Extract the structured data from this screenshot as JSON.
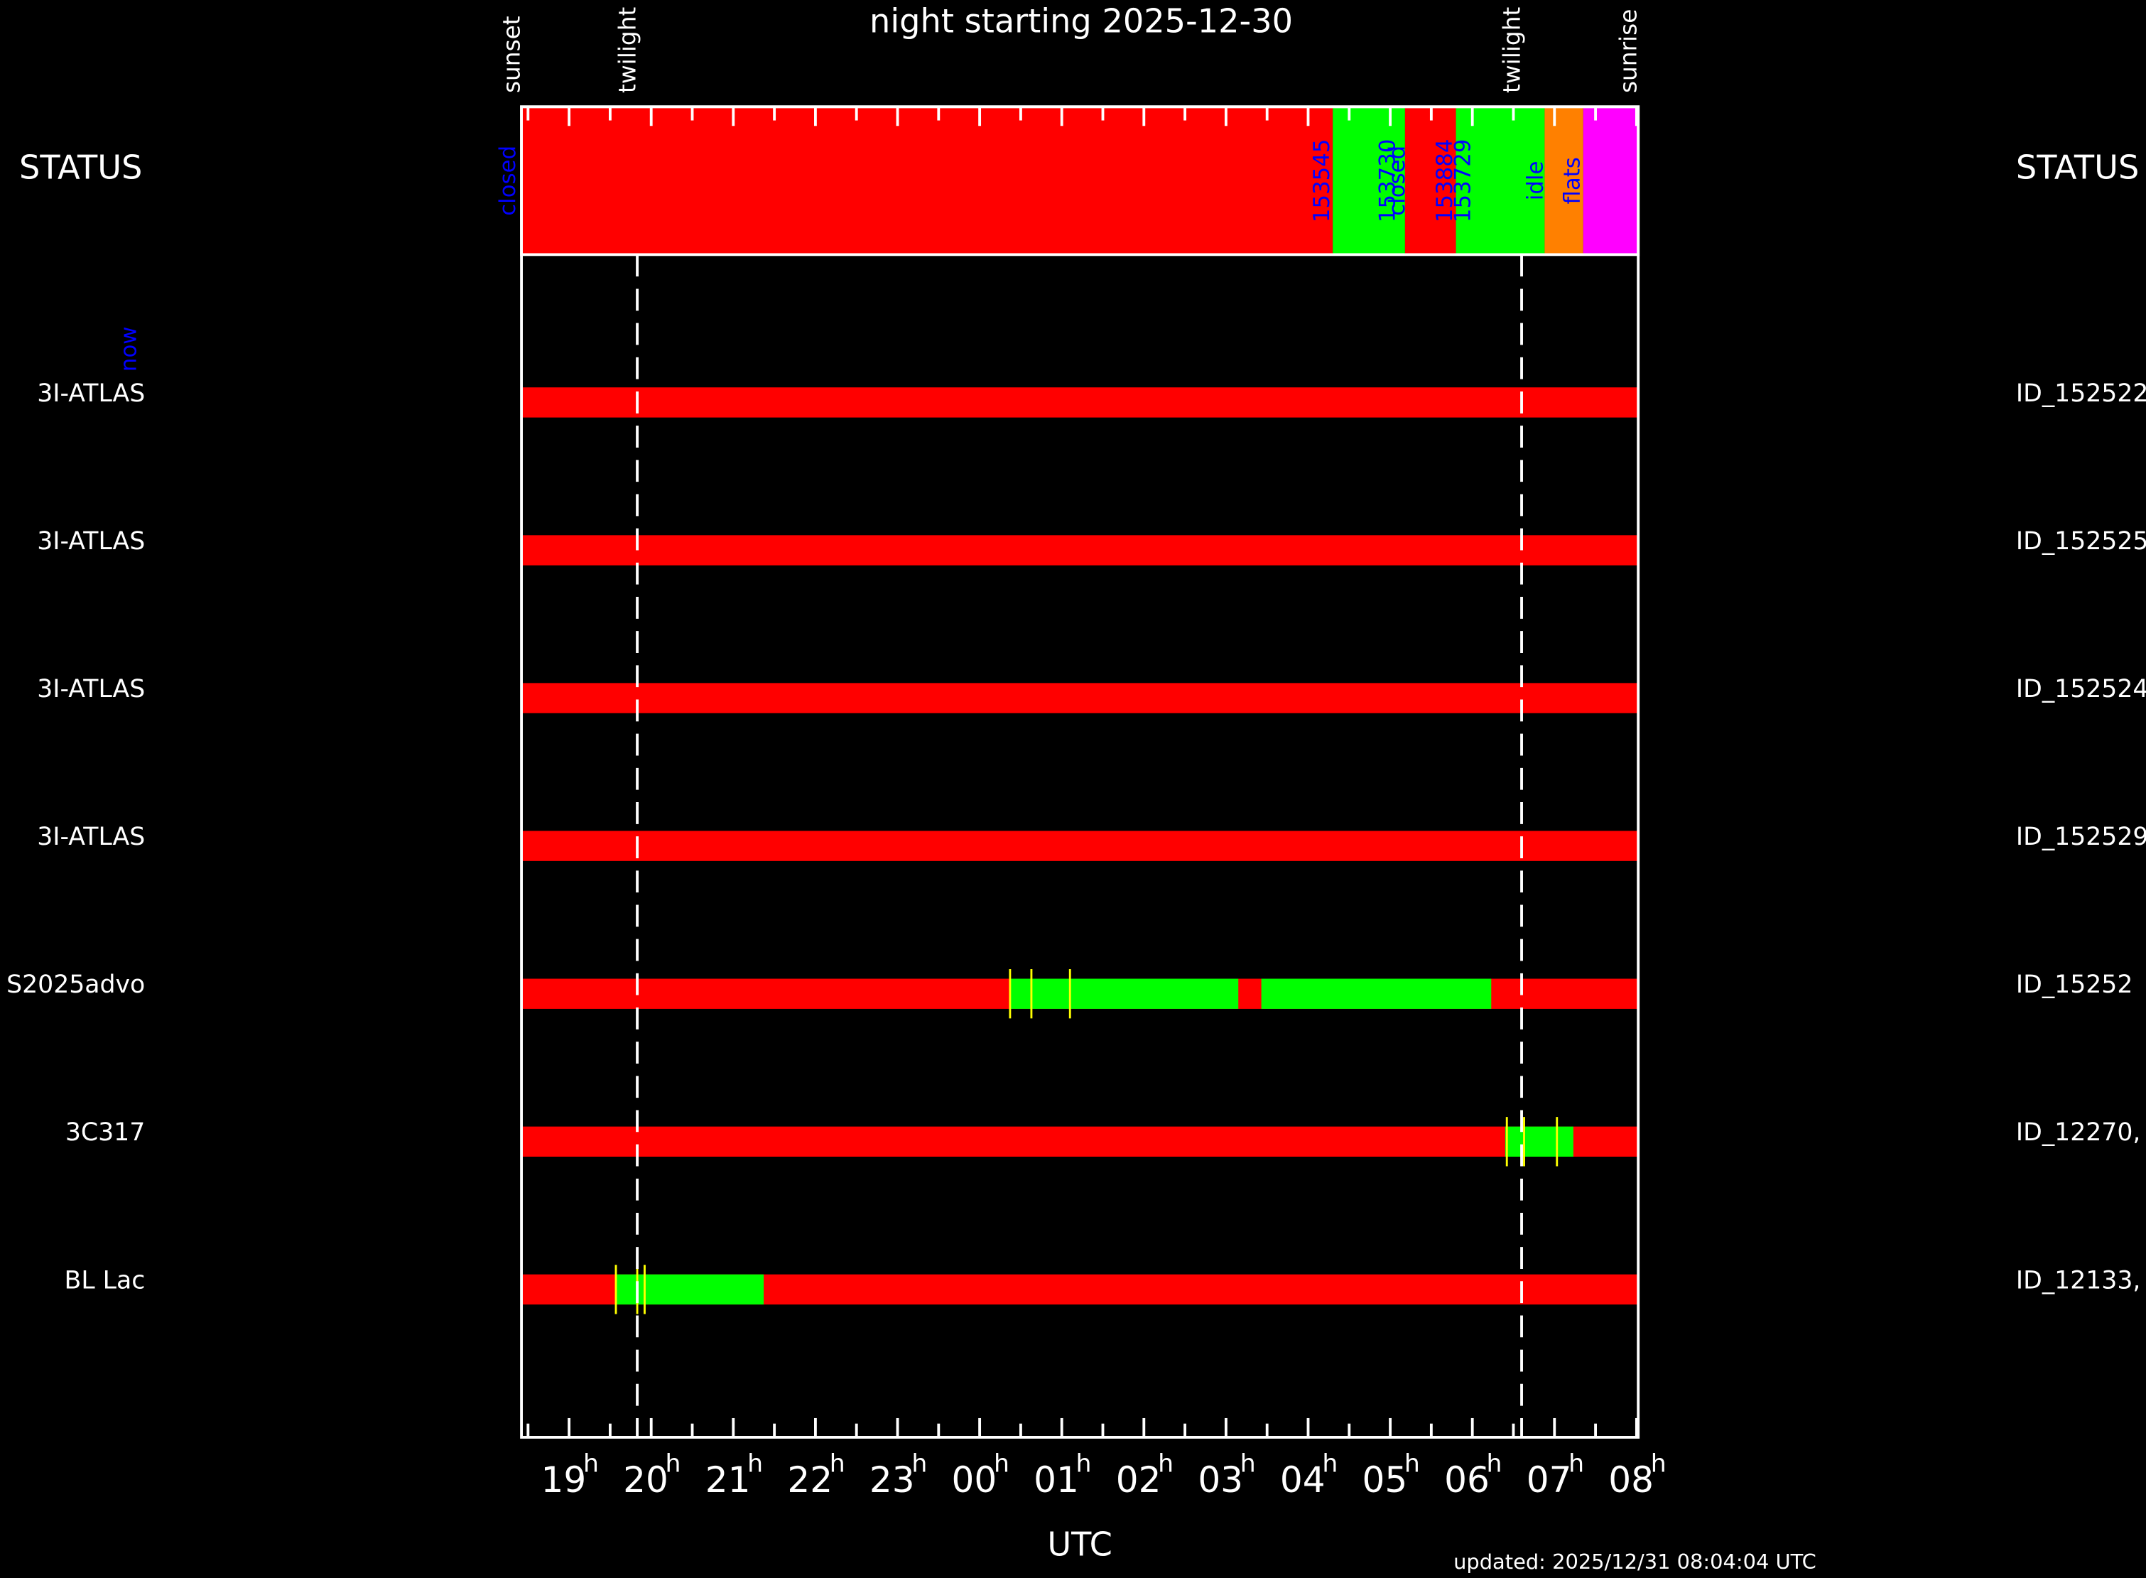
{
  "chart_data": {
    "type": "timeline",
    "title": "night starting 2025-12-30",
    "x_label": "UTC",
    "updated": "updated: 2025/12/31 08:04:04 UTC",
    "status_label": "STATUS",
    "now_label": "now",
    "xlim": [
      18.42,
      32.02
    ],
    "xticks": [
      {
        "value": 19,
        "label": "19"
      },
      {
        "value": 20,
        "label": "20"
      },
      {
        "value": 21,
        "label": "21"
      },
      {
        "value": 22,
        "label": "22"
      },
      {
        "value": 23,
        "label": "23"
      },
      {
        "value": 24,
        "label": "00"
      },
      {
        "value": 25,
        "label": "01"
      },
      {
        "value": 26,
        "label": "02"
      },
      {
        "value": 27,
        "label": "03"
      },
      {
        "value": 28,
        "label": "04"
      },
      {
        "value": 29,
        "label": "05"
      },
      {
        "value": 30,
        "label": "06"
      },
      {
        "value": 31,
        "label": "07"
      },
      {
        "value": 32,
        "label": "08"
      }
    ],
    "xtick_unit": "h",
    "xminor": [
      18.5,
      19.5,
      20.5,
      21.5,
      22.5,
      23.5,
      24.5,
      25.5,
      26.5,
      27.5,
      28.5,
      29.5,
      30.5,
      31.5
    ],
    "events": [
      {
        "label": "sunset",
        "value": 18.42
      },
      {
        "label": "twilight",
        "value": 19.83,
        "line": "dashed"
      },
      {
        "label": "twilight",
        "value": 30.6,
        "line": "dashed"
      },
      {
        "label": "sunrise",
        "value": 32.02
      }
    ],
    "status_segments": [
      {
        "start": 18.42,
        "end": 28.3,
        "color": "#ff0000"
      },
      {
        "start": 28.3,
        "end": 29.18,
        "color": "#00ff00"
      },
      {
        "start": 29.18,
        "end": 29.8,
        "color": "#ff0000"
      },
      {
        "start": 29.8,
        "end": 30.88,
        "color": "#00ff00"
      },
      {
        "start": 30.88,
        "end": 31.35,
        "color": "#ff8000"
      },
      {
        "start": 31.35,
        "end": 32.02,
        "color": "#ff00ff"
      }
    ],
    "status_labels": [
      {
        "text": "closed",
        "time": 18.27
      },
      {
        "text": "153545",
        "time": 28.18
      },
      {
        "text": "153730",
        "time": 28.98
      },
      {
        "text": "closed",
        "time": 29.1
      },
      {
        "text": "153884",
        "time": 29.68
      },
      {
        "text": "153729",
        "time": 29.9
      },
      {
        "text": "idle",
        "time": 30.78
      },
      {
        "text": "flats",
        "time": 31.23
      }
    ],
    "label_color": "#0000ff",
    "background_color": "#ff0000",
    "done_color": "#00ff00",
    "marker_color": "#ffff00",
    "rows": [
      {
        "name": "3I-ATLAS",
        "id": "ID_152522",
        "done": [],
        "markers": []
      },
      {
        "name": "3I-ATLAS",
        "id": "ID_152525",
        "done": [],
        "markers": []
      },
      {
        "name": "3I-ATLAS",
        "id": "ID_152524",
        "done": [],
        "markers": []
      },
      {
        "name": "3I-ATLAS",
        "id": "ID_152529",
        "done": [],
        "markers": []
      },
      {
        "name": "S2025advo",
        "id": "ID_15252",
        "done": [
          [
            24.37,
            27.15
          ],
          [
            27.43,
            30.23
          ]
        ],
        "markers": [
          24.37,
          24.63,
          25.1
        ]
      },
      {
        "name": "3C317",
        "id": "ID_12270,",
        "done": [
          [
            30.4,
            31.23
          ]
        ],
        "markers": [
          30.42,
          30.63,
          31.03
        ]
      },
      {
        "name": "BL Lac",
        "id": "ID_12133,",
        "done": [
          [
            19.57,
            21.37
          ]
        ],
        "markers": [
          19.57,
          19.83,
          19.92
        ]
      }
    ]
  }
}
